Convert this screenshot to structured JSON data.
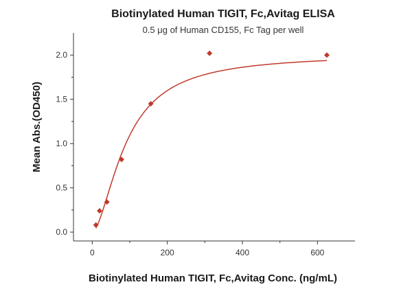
{
  "chart_data": {
    "type": "scatter",
    "title": "Biotinylated Human TIGIT, Fc,Avitag ELISA",
    "subtitle": "0.5 μg of Human CD155, Fc Tag per well",
    "xlabel": "Biotinylated Human TIGIT, Fc,Avitag Conc. (ng/mL)",
    "ylabel": "Mean Abs.(OD450)",
    "xlim": [
      -50,
      700
    ],
    "ylim": [
      -0.1,
      2.25
    ],
    "xticks": [
      0,
      200,
      400,
      600
    ],
    "yticks": [
      0.0,
      0.5,
      1.0,
      1.5,
      2.0
    ],
    "xtick_labels": [
      "0",
      "200",
      "400",
      "600"
    ],
    "ytick_labels": [
      "0.0",
      "0.5",
      "1.0",
      "1.5",
      "2.0"
    ],
    "grid": false,
    "series": [
      {
        "marker": "diamond",
        "color": "#c0392b",
        "x": [
          9.8,
          19.5,
          39,
          78,
          156,
          312.5,
          625
        ],
        "y": [
          0.08,
          0.24,
          0.34,
          0.82,
          1.45,
          2.02,
          2.0
        ]
      }
    ],
    "fit_curve": {
      "type": "sigmoidal",
      "color": "#c0392b",
      "bottom": 0.0,
      "top": 2.01,
      "ec50": 90,
      "hill": 1.7
    }
  }
}
